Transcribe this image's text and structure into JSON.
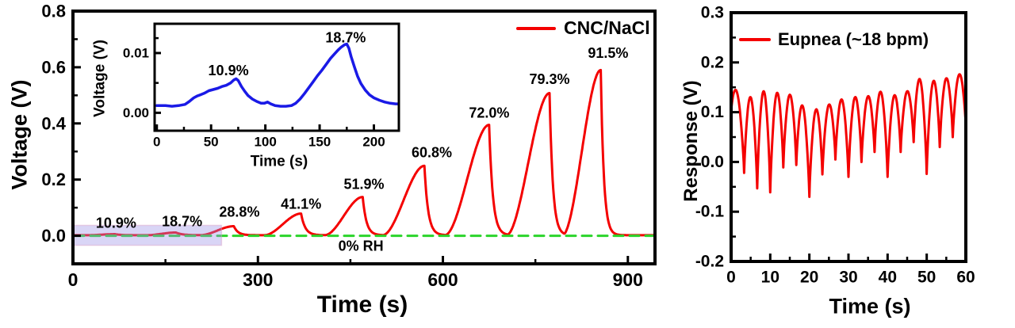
{
  "figure": {
    "background": "#FFFFFF"
  },
  "colors": {
    "series_red": "#F40000",
    "inset_blue": "#1A1AE6",
    "zero_green": "#2BD42B",
    "highlight_fill": "rgba(155,145,232,0.38)",
    "highlight_border": "rgba(215,160,200,0.45)",
    "axis_black": "#000000"
  },
  "chart_data": [
    {
      "type": "line",
      "panel": "humidity-response",
      "xlabel": "Time (s)",
      "ylabel": "Voltage (V)",
      "xlim": [
        0,
        944
      ],
      "ylim": [
        -0.1,
        0.8
      ],
      "grid": false,
      "legend": {
        "label": "CNC/NaCl",
        "position": "top-right"
      },
      "xticks": {
        "major": [
          {
            "t": 0,
            "label": "0"
          },
          {
            "t": 300,
            "label": "300"
          },
          {
            "t": 600,
            "label": "600"
          },
          {
            "t": 900,
            "label": "900"
          }
        ],
        "minor": [
          150,
          450,
          750
        ]
      },
      "yticks": {
        "major": [
          {
            "v": 0,
            "label": "0.0"
          },
          {
            "v": 0.2,
            "label": "0.2"
          },
          {
            "v": 0.4,
            "label": "0.4"
          },
          {
            "v": 0.6,
            "label": "0.6"
          },
          {
            "v": 0.8,
            "label": "0.8"
          }
        ],
        "minor": [
          0.1,
          0.3,
          0.5,
          0.7
        ]
      },
      "series": {
        "name": "CNC/NaCl",
        "baseline_v": 0.0018,
        "pulses": [
          {
            "rh": "10.9%",
            "peak_t": 68,
            "peak_v": 0.0057,
            "rise_s": 45,
            "fall_s": 28
          },
          {
            "rh": "18.7%",
            "peak_t": 167,
            "peak_v": 0.0115,
            "rise_s": 48,
            "fall_s": 30
          },
          {
            "rh": "28.8%",
            "peak_t": 261,
            "peak_v": 0.034,
            "rise_s": 55,
            "fall_s": 20
          },
          {
            "rh": "41.1%",
            "peak_t": 370,
            "peak_v": 0.079,
            "rise_s": 60,
            "fall_s": 20
          },
          {
            "rh": "51.9%",
            "peak_t": 470,
            "peak_v": 0.138,
            "rise_s": 62,
            "fall_s": 18
          },
          {
            "rh": "60.8%",
            "peak_t": 570,
            "peak_v": 0.249,
            "rise_s": 68,
            "fall_s": 18
          },
          {
            "rh": "72.0%",
            "peak_t": 675,
            "peak_v": 0.395,
            "rise_s": 72,
            "fall_s": 18
          },
          {
            "rh": "79.3%",
            "peak_t": 773,
            "peak_v": 0.508,
            "rise_s": 70,
            "fall_s": 16
          },
          {
            "rh": "91.5%",
            "peak_t": 856,
            "peak_v": 0.59,
            "rise_s": 62,
            "fall_s": 15
          }
        ]
      },
      "annotations": [
        {
          "text": "10.9%",
          "t": 70,
          "v": 0.045
        },
        {
          "text": "18.7%",
          "t": 177,
          "v": 0.051
        },
        {
          "text": "28.8%",
          "t": 270,
          "v": 0.085
        },
        {
          "text": "41.1%",
          "t": 370,
          "v": 0.113
        },
        {
          "text": "51.9%",
          "t": 472,
          "v": 0.183
        },
        {
          "text": "60.8%",
          "t": 582,
          "v": 0.297
        },
        {
          "text": "72.0%",
          "t": 675,
          "v": 0.438
        },
        {
          "text": "79.3%",
          "t": 773,
          "v": 0.557
        },
        {
          "text": "91.5%",
          "t": 868,
          "v": 0.65
        }
      ],
      "zero_line": {
        "v": 0,
        "label": "0% RH",
        "label_t": 467,
        "label_v": -0.037
      },
      "highlight": {
        "t_range": [
          0,
          241
        ],
        "v_range": [
          -0.034,
          0.037
        ]
      },
      "inset": {
        "xlabel": "Time (s)",
        "ylabel": "Voltage (V)",
        "xlim": [
          -2,
          223
        ],
        "ylim": [
          -0.003,
          0.0149
        ],
        "xticks": {
          "major": [
            {
              "t": 0,
              "label": "0"
            },
            {
              "t": 50,
              "label": "50"
            },
            {
              "t": 100,
              "label": "100"
            },
            {
              "t": 150,
              "label": "150"
            },
            {
              "t": 200,
              "label": "200"
            }
          ],
          "minor": [
            25,
            75,
            125,
            175
          ]
        },
        "yticks": {
          "major": [
            {
              "v": 0,
              "label": "0.00"
            },
            {
              "v": 0.01,
              "label": "0.01"
            }
          ],
          "minor": [
            0.005,
            0.0125
          ]
        },
        "annotations": [
          {
            "text": "10.9%",
            "t": 66,
            "v": 0.0071
          },
          {
            "text": "18.7%",
            "t": 174,
            "v": 0.0126
          }
        ],
        "points": [
          [
            0,
            0.0012
          ],
          [
            8,
            0.0012
          ],
          [
            14,
            0.0011
          ],
          [
            20,
            0.0012
          ],
          [
            26,
            0.0014
          ],
          [
            30,
            0.0019
          ],
          [
            34,
            0.0025
          ],
          [
            37,
            0.0028
          ],
          [
            40,
            0.003
          ],
          [
            44,
            0.0033
          ],
          [
            48,
            0.0037
          ],
          [
            52,
            0.0039
          ],
          [
            56,
            0.0041
          ],
          [
            60,
            0.0044
          ],
          [
            64,
            0.0046
          ],
          [
            68,
            0.005
          ],
          [
            71,
            0.0055
          ],
          [
            73,
            0.0057
          ],
          [
            75,
            0.0054
          ],
          [
            78,
            0.0044
          ],
          [
            81,
            0.0036
          ],
          [
            84,
            0.0029
          ],
          [
            88,
            0.0023
          ],
          [
            92,
            0.0019
          ],
          [
            96,
            0.0016
          ],
          [
            99,
            0.0016
          ],
          [
            102,
            0.0018
          ],
          [
            105,
            0.0015
          ],
          [
            109,
            0.0012
          ],
          [
            114,
            0.0011
          ],
          [
            119,
            0.0011
          ],
          [
            124,
            0.0012
          ],
          [
            128,
            0.0016
          ],
          [
            132,
            0.0023
          ],
          [
            136,
            0.0032
          ],
          [
            140,
            0.0042
          ],
          [
            144,
            0.0052
          ],
          [
            148,
            0.0062
          ],
          [
            152,
            0.0071
          ],
          [
            156,
            0.0081
          ],
          [
            160,
            0.0091
          ],
          [
            164,
            0.0099
          ],
          [
            167,
            0.0105
          ],
          [
            170,
            0.011
          ],
          [
            173,
            0.0114
          ],
          [
            175,
            0.0115
          ],
          [
            177,
            0.0108
          ],
          [
            179,
            0.0094
          ],
          [
            182,
            0.0077
          ],
          [
            185,
            0.0061
          ],
          [
            188,
            0.0049
          ],
          [
            192,
            0.0038
          ],
          [
            196,
            0.003
          ],
          [
            200,
            0.0025
          ],
          [
            205,
            0.0021
          ],
          [
            210,
            0.0018
          ],
          [
            215,
            0.0016
          ],
          [
            220,
            0.0015
          ],
          [
            222,
            0.0015
          ]
        ]
      }
    },
    {
      "type": "line",
      "panel": "breathing-response",
      "xlabel": "Time (s)",
      "ylabel": "Response (V)",
      "xlim": [
        0,
        60
      ],
      "ylim": [
        -0.2,
        0.3
      ],
      "grid": false,
      "legend": {
        "label": "Eupnea (~18 bpm)",
        "position": "top-left"
      },
      "xticks": {
        "major": [
          {
            "t": 0,
            "label": "0"
          },
          {
            "t": 10,
            "label": "10"
          },
          {
            "t": 20,
            "label": "20"
          },
          {
            "t": 30,
            "label": "30"
          },
          {
            "t": 40,
            "label": "40"
          },
          {
            "t": 50,
            "label": "50"
          },
          {
            "t": 60,
            "label": "60"
          }
        ],
        "minor": [
          5,
          15,
          25,
          35,
          45,
          55
        ]
      },
      "yticks": {
        "major": [
          {
            "v": -0.2,
            "label": "-0.2"
          },
          {
            "v": -0.1,
            "label": "-0.1"
          },
          {
            "v": 0,
            "label": "0.0"
          },
          {
            "v": 0.1,
            "label": "0.1"
          },
          {
            "v": 0.2,
            "label": "0.2"
          },
          {
            "v": 0.3,
            "label": "0.3"
          }
        ],
        "minor": [
          -0.15,
          -0.05,
          0.05,
          0.15,
          0.25
        ]
      },
      "series": {
        "name": "Eupnea (~18 bpm)",
        "breaths_per_min": 18,
        "period_s": 3.333,
        "cycle_peaks": [
          0.135,
          0.13,
          0.142,
          0.138,
          0.135,
          0.112,
          0.105,
          0.115,
          0.125,
          0.13,
          0.132,
          0.14,
          0.133,
          0.142,
          0.165,
          0.162,
          0.168,
          0.176
        ],
        "cycle_troughs": [
          0.1,
          -0.022,
          -0.053,
          -0.061,
          -0.011,
          -0.006,
          -0.07,
          -0.025,
          0.005,
          -0.03,
          0,
          0.02,
          -0.03,
          0.02,
          0.04,
          -0.024,
          0.03,
          0.05,
          0.07
        ]
      }
    }
  ]
}
